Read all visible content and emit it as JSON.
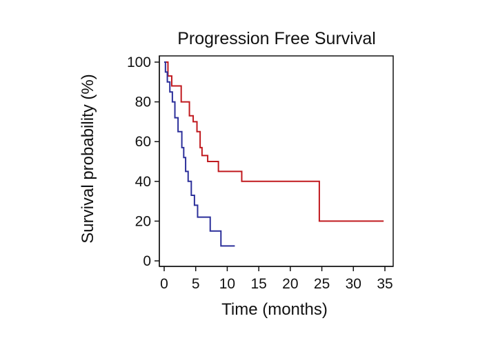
{
  "chart_data": {
    "type": "line",
    "title": "Progression Free Survival",
    "xlabel": "Time (months)",
    "ylabel": "Survival probability (%)",
    "xlim": [
      0,
      35
    ],
    "ylim": [
      0,
      100
    ],
    "xticks": [
      0,
      5,
      10,
      15,
      20,
      25,
      30,
      35
    ],
    "yticks": [
      0,
      20,
      40,
      60,
      80,
      100
    ],
    "grid": false,
    "legend": "none",
    "step": true,
    "series": [
      {
        "color": "#c0191e",
        "x": [
          0,
          0.6,
          1.2,
          2.7,
          4.0,
          4.6,
          5.2,
          5.7,
          6.0,
          6.9,
          8.6,
          12.3,
          24.6,
          34.8
        ],
        "y": [
          100,
          93,
          88,
          80,
          73,
          70,
          65,
          57,
          53,
          50,
          45,
          40,
          20,
          20
        ]
      },
      {
        "color": "#2b2f9a",
        "x": [
          0,
          0.2,
          0.5,
          0.9,
          1.3,
          1.7,
          2.2,
          2.8,
          3.1,
          3.4,
          3.8,
          4.3,
          4.8,
          5.3,
          7.3,
          9.0,
          11.2
        ],
        "y": [
          100,
          95,
          90,
          85,
          80,
          72,
          65,
          57,
          52,
          45,
          40,
          33,
          28,
          22,
          15,
          7.5,
          7.5
        ]
      }
    ]
  }
}
